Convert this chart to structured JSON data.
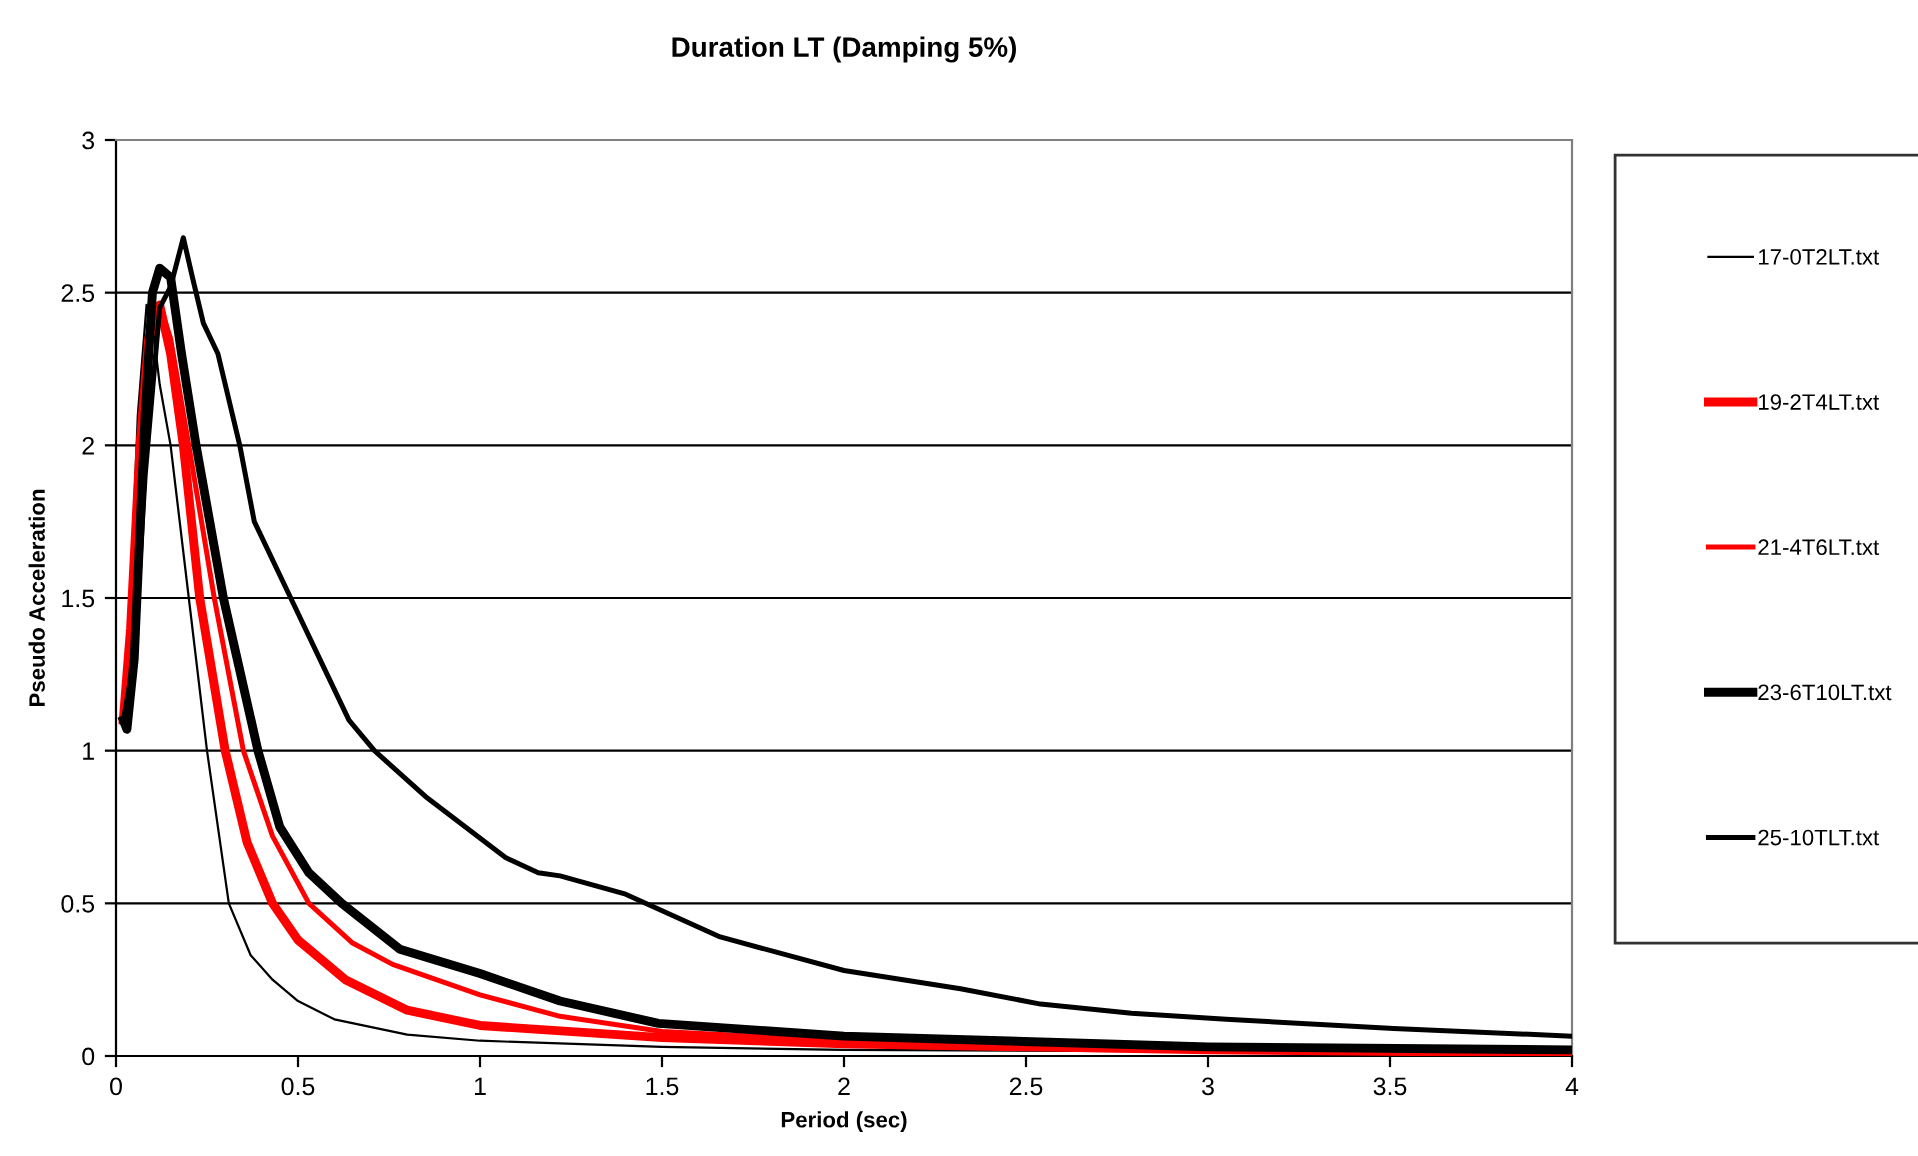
{
  "chart_data": {
    "type": "line",
    "title": "Duration LT (Damping 5%)",
    "xlabel": "Period (sec)",
    "ylabel": "Pseudo Acceleration",
    "xlim": [
      0,
      4
    ],
    "ylim": [
      0,
      3
    ],
    "xticks": [
      0,
      0.5,
      1,
      1.5,
      2,
      2.5,
      3,
      3.5,
      4
    ],
    "yticks": [
      0,
      0.5,
      1,
      1.5,
      2,
      2.5,
      3
    ],
    "grid": "y",
    "legend": "right",
    "marker": "none",
    "line_style": "solid",
    "series": [
      {
        "name": "17-0T2LT.txt",
        "color": "#000000",
        "x": [
          0.02,
          0.04,
          0.06,
          0.084,
          0.1,
          0.12,
          0.15,
          0.2,
          0.25,
          0.31,
          0.37,
          0.43,
          0.5,
          0.6,
          0.8,
          1,
          1.5,
          2,
          3,
          4
        ],
        "values": [
          1.1,
          1.5,
          2.1,
          2.46,
          2.4,
          2.2,
          2.0,
          1.5,
          1.0,
          0.5,
          0.33,
          0.25,
          0.18,
          0.12,
          0.07,
          0.05,
          0.03,
          0.02,
          0.015,
          0.01
        ]
      },
      {
        "name": "19-2T4LT.txt",
        "color": "#ff0000",
        "x": [
          0.02,
          0.04,
          0.066,
          0.09,
          0.12,
          0.15,
          0.185,
          0.23,
          0.3,
          0.36,
          0.43,
          0.5,
          0.63,
          0.8,
          1,
          1.5,
          2,
          3,
          4
        ],
        "values": [
          1.1,
          1.4,
          2.0,
          2.35,
          2.46,
          2.3,
          2.0,
          1.5,
          1.0,
          0.7,
          0.5,
          0.38,
          0.25,
          0.15,
          0.1,
          0.06,
          0.04,
          0.02,
          0.01
        ]
      },
      {
        "name": "21-4T6LT.txt",
        "color": "#ff0000",
        "x": [
          0.02,
          0.04,
          0.066,
          0.09,
          0.12,
          0.15,
          0.2,
          0.27,
          0.35,
          0.43,
          0.53,
          0.65,
          0.76,
          1,
          1.22,
          1.5,
          2,
          3,
          4
        ],
        "values": [
          1.1,
          1.4,
          2.0,
          2.35,
          2.46,
          2.35,
          2.0,
          1.5,
          1.0,
          0.72,
          0.5,
          0.37,
          0.3,
          0.2,
          0.13,
          0.08,
          0.05,
          0.025,
          0.015
        ]
      },
      {
        "name": "23-6T10LT.txt",
        "color": "#000000",
        "x": [
          0.02,
          0.03,
          0.05,
          0.08,
          0.1,
          0.12,
          0.15,
          0.18,
          0.22,
          0.295,
          0.39,
          0.45,
          0.53,
          0.62,
          0.78,
          1,
          1.22,
          1.49,
          2,
          3,
          4
        ],
        "values": [
          1.1,
          1.07,
          1.3,
          2.1,
          2.5,
          2.58,
          2.55,
          2.3,
          2.0,
          1.5,
          1.0,
          0.75,
          0.6,
          0.5,
          0.35,
          0.27,
          0.18,
          0.107,
          0.065,
          0.03,
          0.02
        ]
      },
      {
        "name": "25-10TLT.txt",
        "color": "#000000",
        "x": [
          0.02,
          0.05,
          0.08,
          0.12,
          0.15,
          0.185,
          0.21,
          0.24,
          0.28,
          0.34,
          0.38,
          0.48,
          0.58,
          0.64,
          0.71,
          0.85,
          0.96,
          1.07,
          1.16,
          1.22,
          1.4,
          1.66,
          2.0,
          2.32,
          2.54,
          2.79,
          3.05,
          3.51,
          4.0
        ],
        "values": [
          1.1,
          1.3,
          1.9,
          2.45,
          2.52,
          2.68,
          2.55,
          2.4,
          2.3,
          2.0,
          1.75,
          1.5,
          1.25,
          1.1,
          1.0,
          0.85,
          0.75,
          0.65,
          0.6,
          0.59,
          0.53,
          0.39,
          0.28,
          0.22,
          0.17,
          0.14,
          0.12,
          0.09,
          0.065
        ]
      }
    ]
  }
}
